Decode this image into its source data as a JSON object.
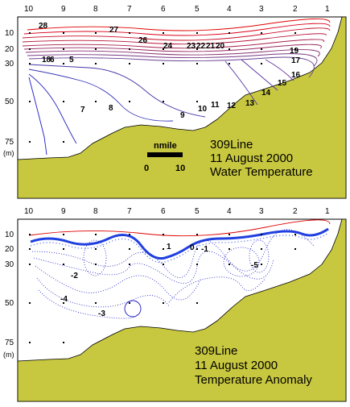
{
  "chart_data": [
    {
      "type": "contour",
      "x_ticks": [
        "10",
        "9",
        "8",
        "7",
        "6",
        "5",
        "4",
        "3",
        "2",
        "1"
      ],
      "y_ticks": [
        "10",
        "20",
        "30",
        "50",
        "75"
      ],
      "y_unit": "(m)",
      "caption": [
        "309Line",
        "11 August 2000",
        "Water Temperature"
      ],
      "scale_bar": {
        "label": "nmile",
        "from": "0",
        "to": "10"
      },
      "contour_labels": [
        "28",
        "27",
        "26",
        "24",
        "23",
        "22",
        "21",
        "20",
        "19",
        "18",
        "17",
        "16",
        "15",
        "14",
        "13",
        "12",
        "11",
        "10",
        "9",
        "8",
        "7",
        "6",
        "5"
      ],
      "colors": {
        "seabed": "#c8c840",
        "warm": "#e00000",
        "cold": "#1818c8"
      }
    },
    {
      "type": "contour",
      "x_ticks": [
        "10",
        "9",
        "8",
        "7",
        "6",
        "5",
        "4",
        "3",
        "2",
        "1"
      ],
      "y_ticks": [
        "10",
        "20",
        "30",
        "50",
        "75"
      ],
      "y_unit": "(m)",
      "caption": [
        "309Line",
        "11 August 2000",
        "Temperature Anomaly"
      ],
      "contour_labels": [
        "0",
        "-1",
        "-2",
        "-3",
        "-4",
        "-5",
        "1"
      ],
      "colors": {
        "seabed": "#c8c840",
        "zero_line": "#2040e0",
        "negative": "#1818c8",
        "positive": "#e00000"
      }
    }
  ]
}
